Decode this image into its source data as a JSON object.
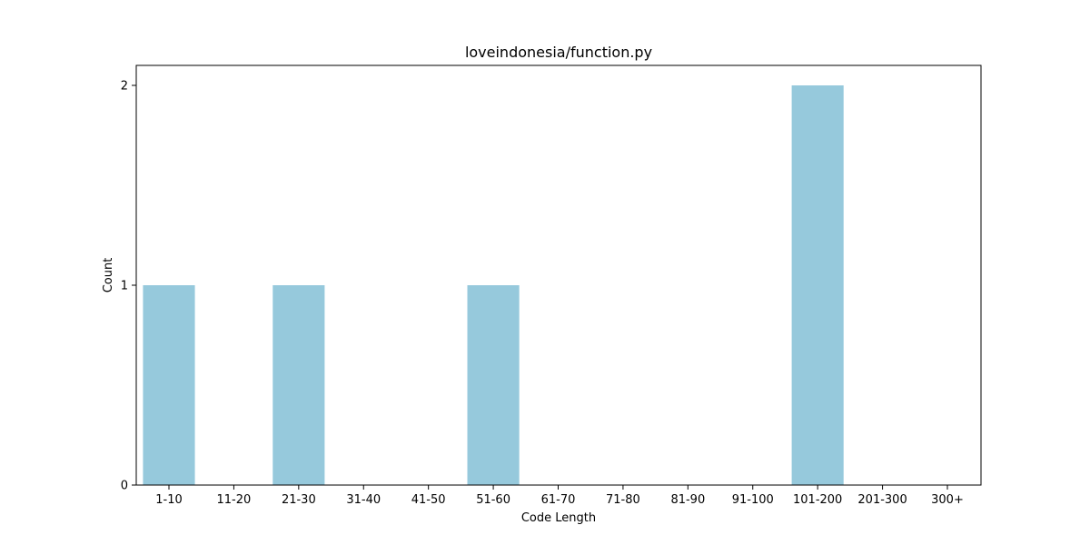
{
  "chart_data": {
    "type": "bar",
    "title": "loveindonesia/function.py",
    "xlabel": "Code Length",
    "ylabel": "Count",
    "categories": [
      "1-10",
      "11-20",
      "21-30",
      "31-40",
      "41-50",
      "51-60",
      "61-70",
      "71-80",
      "81-90",
      "91-100",
      "101-200",
      "201-300",
      "300+"
    ],
    "values": [
      1,
      0,
      1,
      0,
      0,
      1,
      0,
      0,
      0,
      0,
      2,
      0,
      0
    ],
    "yticks": [
      0,
      1,
      2
    ],
    "ylim": [
      0,
      2.1
    ],
    "grid": false,
    "bar_color": "#96c9dc"
  }
}
